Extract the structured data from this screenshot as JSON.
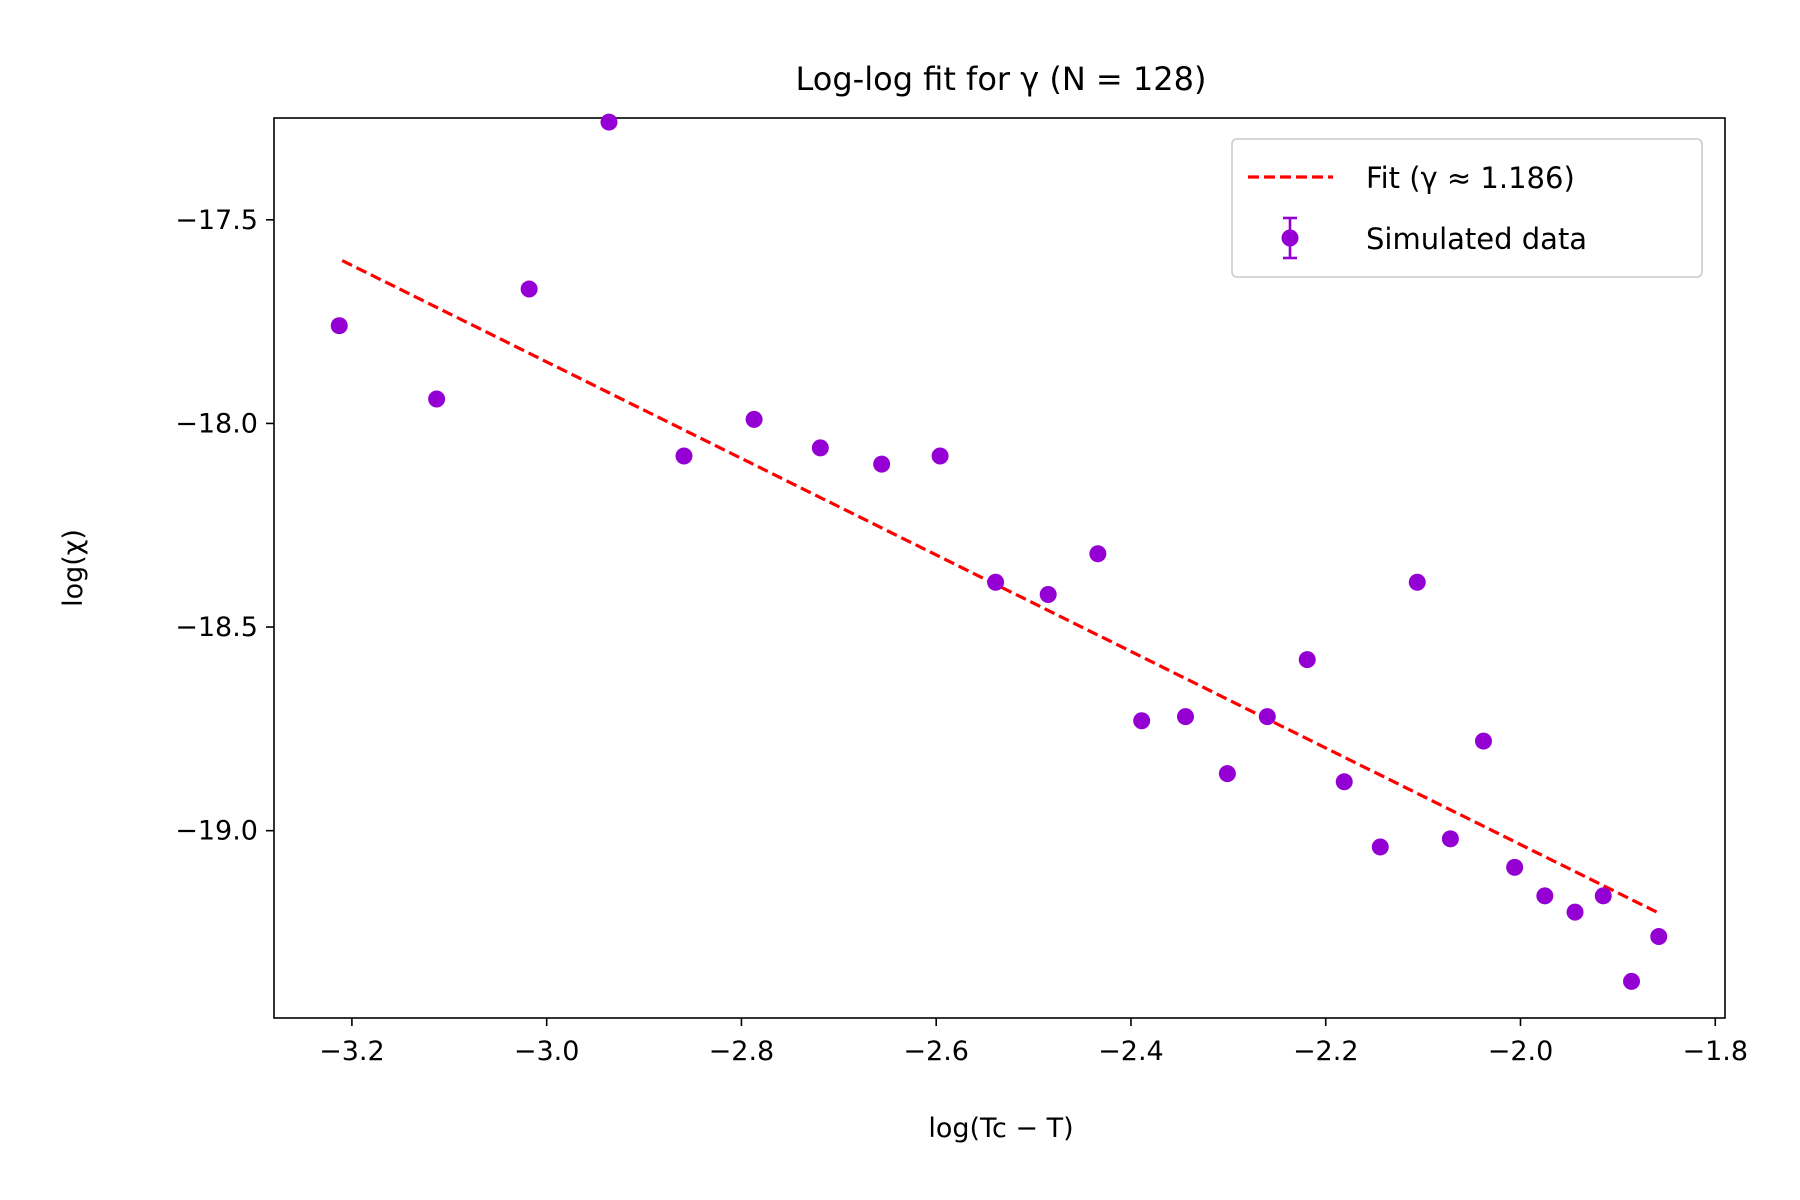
{
  "chart_data": {
    "type": "scatter",
    "title": "Log-log fit for γ (N = 128)",
    "xlabel": "log(Tc − T)",
    "ylabel": "log(χ)",
    "xlim": [
      -3.28,
      -1.79
    ],
    "ylim": [
      -19.46,
      -17.25
    ],
    "xticks": [
      -3.2,
      -3.0,
      -2.8,
      -2.6,
      -2.4,
      -2.2,
      -2.0,
      -1.8
    ],
    "xtick_labels": [
      "−3.2",
      "−3.0",
      "−2.8",
      "−2.6",
      "−2.4",
      "−2.2",
      "−2.0",
      "−1.8"
    ],
    "yticks": [
      -17.5,
      -18.0,
      -18.5,
      -19.0
    ],
    "ytick_labels": [
      "−17.5",
      "−18.0",
      "−18.5",
      "−19.0"
    ],
    "grid": false,
    "legend_position": "top-right",
    "series": [
      {
        "name": "Fit (γ ≈ 1.186)",
        "kind": "line",
        "style": "dashed",
        "color": "#ff0000",
        "x": [
          -3.21,
          -1.86
        ],
        "y": [
          -17.6,
          -19.2
        ]
      },
      {
        "name": "Simulated data",
        "kind": "errorbar",
        "color": "#9400d3",
        "x": [
          -3.213,
          -3.113,
          -3.018,
          -2.936,
          -2.859,
          -2.787,
          -2.719,
          -2.656,
          -2.596,
          -2.539,
          -2.485,
          -2.434,
          -2.389,
          -2.344,
          -2.301,
          -2.26,
          -2.219,
          -2.181,
          -2.144,
          -2.106,
          -2.072,
          -2.038,
          -2.006,
          -1.975,
          -1.944,
          -1.915,
          -1.886,
          -1.858
        ],
        "y": [
          -17.76,
          -17.94,
          -17.67,
          -17.26,
          -18.08,
          -17.99,
          -18.06,
          -18.1,
          -18.08,
          -18.39,
          -18.42,
          -18.32,
          -18.73,
          -18.72,
          -18.86,
          -18.72,
          -18.58,
          -18.88,
          -19.04,
          -18.39,
          -19.02,
          -18.78,
          -19.09,
          -19.16,
          -19.2,
          -19.16,
          -19.37,
          -19.26
        ],
        "yerr": 0.01
      }
    ]
  }
}
